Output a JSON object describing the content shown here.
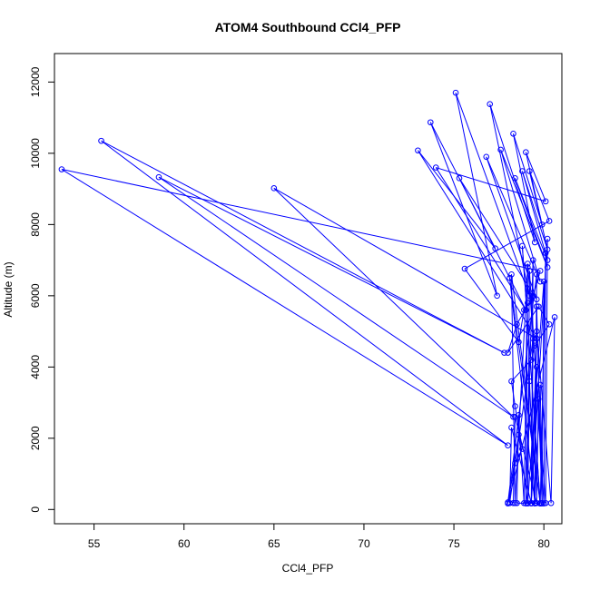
{
  "chart_data": {
    "type": "line",
    "title": "ATOM4 Southbound CCl4_PFP",
    "xlabel": "CCl4_PFP",
    "ylabel": "Altitude (m)",
    "xlim": [
      52.8,
      81.0
    ],
    "ylim": [
      -400,
      12800
    ],
    "xticks": [
      55,
      60,
      65,
      70,
      75,
      80
    ],
    "yticks": [
      0,
      2000,
      4000,
      6000,
      8000,
      10000,
      12000
    ],
    "grid": false,
    "line_color": "#0000ff",
    "marker": "open-circle",
    "series": [
      {
        "x": [
          78.3,
          78.4,
          79.6,
          79.7,
          79.9,
          79.8,
          79.5,
          79.6,
          79.3,
          79.4,
          78.1,
          78.2,
          79.3,
          79.6,
          80.4,
          80.6,
          78.0,
          78.6,
          79.1,
          79.2,
          79.5,
          79.6,
          79.9,
          80.0,
          79.1,
          79.2,
          80.0,
          80.1,
          79.8,
          78.8,
          79.8,
          78.5,
          78.6,
          78.9,
          79.1,
          80.1,
          80.2,
          79.3,
          79.4,
          79.0,
          79.1,
          78.4,
          78.2,
          79.8,
          78.1,
          79.5,
          79.6,
          78.0,
          78.4,
          78.8,
          78.4,
          78.2,
          79.3,
          79.5,
          80.3,
          79.7,
          78.0,
          78.5,
          79.4,
          79.8,
          53.2,
          78.0,
          55.4,
          77.8,
          58.6,
          78.3,
          65.0,
          79.6,
          73.0,
          77.3,
          73.7,
          77.4,
          75.1,
          79.2,
          77.0,
          79.5,
          78.3,
          79.9,
          79.0,
          80.1,
          74.0,
          79.0,
          75.3,
          79.6,
          76.8,
          79.8,
          77.6,
          80.2,
          78.4,
          80.2,
          78.8,
          80.2,
          79.2,
          80.3,
          75.6,
          78.6,
          78.9,
          79.1
        ],
        "y": [
          180,
          2600,
          180,
          3100,
          180,
          3500,
          180,
          4000,
          180,
          4800,
          180,
          2300,
          180,
          5000,
          180,
          5400,
          170,
          2100,
          170,
          3600,
          170,
          5700,
          170,
          6400,
          180,
          6700,
          170,
          7200,
          180,
          7400,
          170,
          180,
          2650,
          180,
          6900,
          180,
          7600,
          170,
          7000,
          170,
          6800,
          180,
          6600,
          170,
          6500,
          180,
          6600,
          200,
          1300,
          1700,
          2900,
          3600,
          4200,
          4600,
          5200,
          5700,
          4400,
          5200,
          6000,
          6700,
          9550,
          1800,
          10350,
          4400,
          9330,
          2600,
          9020,
          4800,
          10080,
          7330,
          10870,
          6000,
          11700,
          6000,
          11380,
          7500,
          10550,
          8000,
          10030,
          8650,
          9600,
          5600,
          9300,
          5900,
          9900,
          6400,
          10100,
          6800,
          9300,
          7000,
          9500,
          7300,
          9500,
          8100,
          6760,
          4700,
          5600,
          5800
        ]
      }
    ]
  }
}
